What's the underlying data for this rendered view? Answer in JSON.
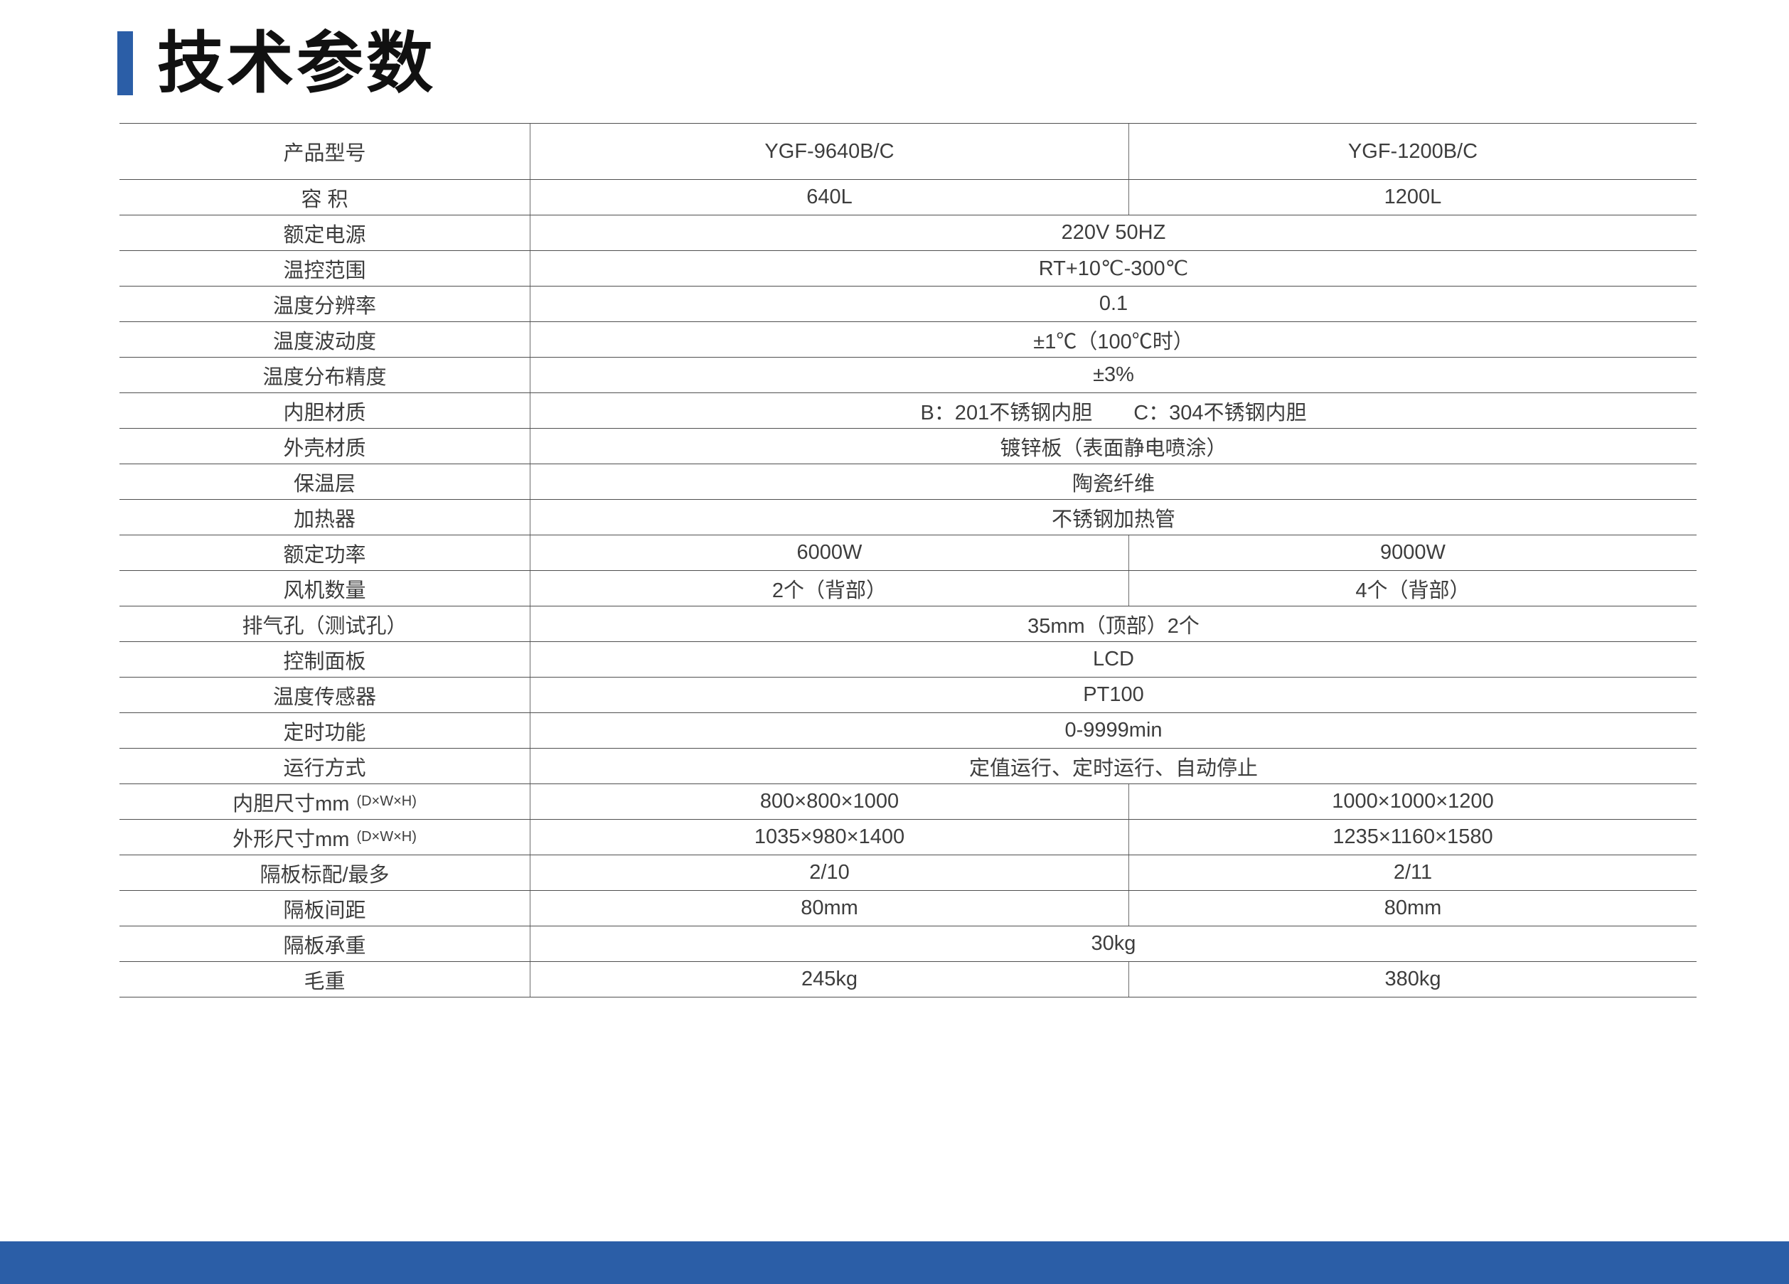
{
  "page": {
    "title": "技术参数",
    "accent_color": "#2B5EA7"
  },
  "table": {
    "rows": [
      {
        "label": "产品型号",
        "values": [
          "YGF-9640B/C",
          "YGF-1200B/C"
        ],
        "tall": true
      },
      {
        "label": "容 积",
        "values": [
          "640L",
          "1200L"
        ]
      },
      {
        "label": "额定电源",
        "merged": "220V 50HZ"
      },
      {
        "label": "温控范围",
        "merged": "RT+10℃-300℃"
      },
      {
        "label": "温度分辨率",
        "merged": "0.1"
      },
      {
        "label": "温度波动度",
        "merged": "±1℃（100℃时）"
      },
      {
        "label": "温度分布精度",
        "merged": "±3%"
      },
      {
        "label": "内胆材质",
        "merged": "B：201不锈钢内胆　　C：304不锈钢内胆"
      },
      {
        "label": "外壳材质",
        "merged": "镀锌板（表面静电喷涂）"
      },
      {
        "label": "保温层",
        "merged": "陶瓷纤维"
      },
      {
        "label": "加热器",
        "merged": "不锈钢加热管"
      },
      {
        "label": "额定功率",
        "values": [
          "6000W",
          "9000W"
        ]
      },
      {
        "label": "风机数量",
        "values": [
          "2个（背部）",
          "4个（背部）"
        ]
      },
      {
        "label": "排气孔（测试孔）",
        "merged": "35mm（顶部）2个"
      },
      {
        "label": "控制面板",
        "merged": "LCD"
      },
      {
        "label": "温度传感器",
        "merged": "PT100"
      },
      {
        "label": "定时功能",
        "merged": "0-9999min"
      },
      {
        "label": "运行方式",
        "merged": "定值运行、定时运行、自动停止"
      },
      {
        "label": "内胆尺寸mm",
        "label_note": "(D×W×H)",
        "values": [
          "800×800×1000",
          "1000×1000×1200"
        ]
      },
      {
        "label": "外形尺寸mm",
        "label_note": "(D×W×H)",
        "values": [
          "1035×980×1400",
          "1235×1160×1580"
        ]
      },
      {
        "label": "隔板标配/最多",
        "values": [
          "2/10",
          "2/11"
        ]
      },
      {
        "label": "隔板间距",
        "values": [
          "80mm",
          "80mm"
        ]
      },
      {
        "label": "隔板承重",
        "merged": "30kg"
      },
      {
        "label": "毛重",
        "values": [
          "245kg",
          "380kg"
        ]
      }
    ]
  }
}
